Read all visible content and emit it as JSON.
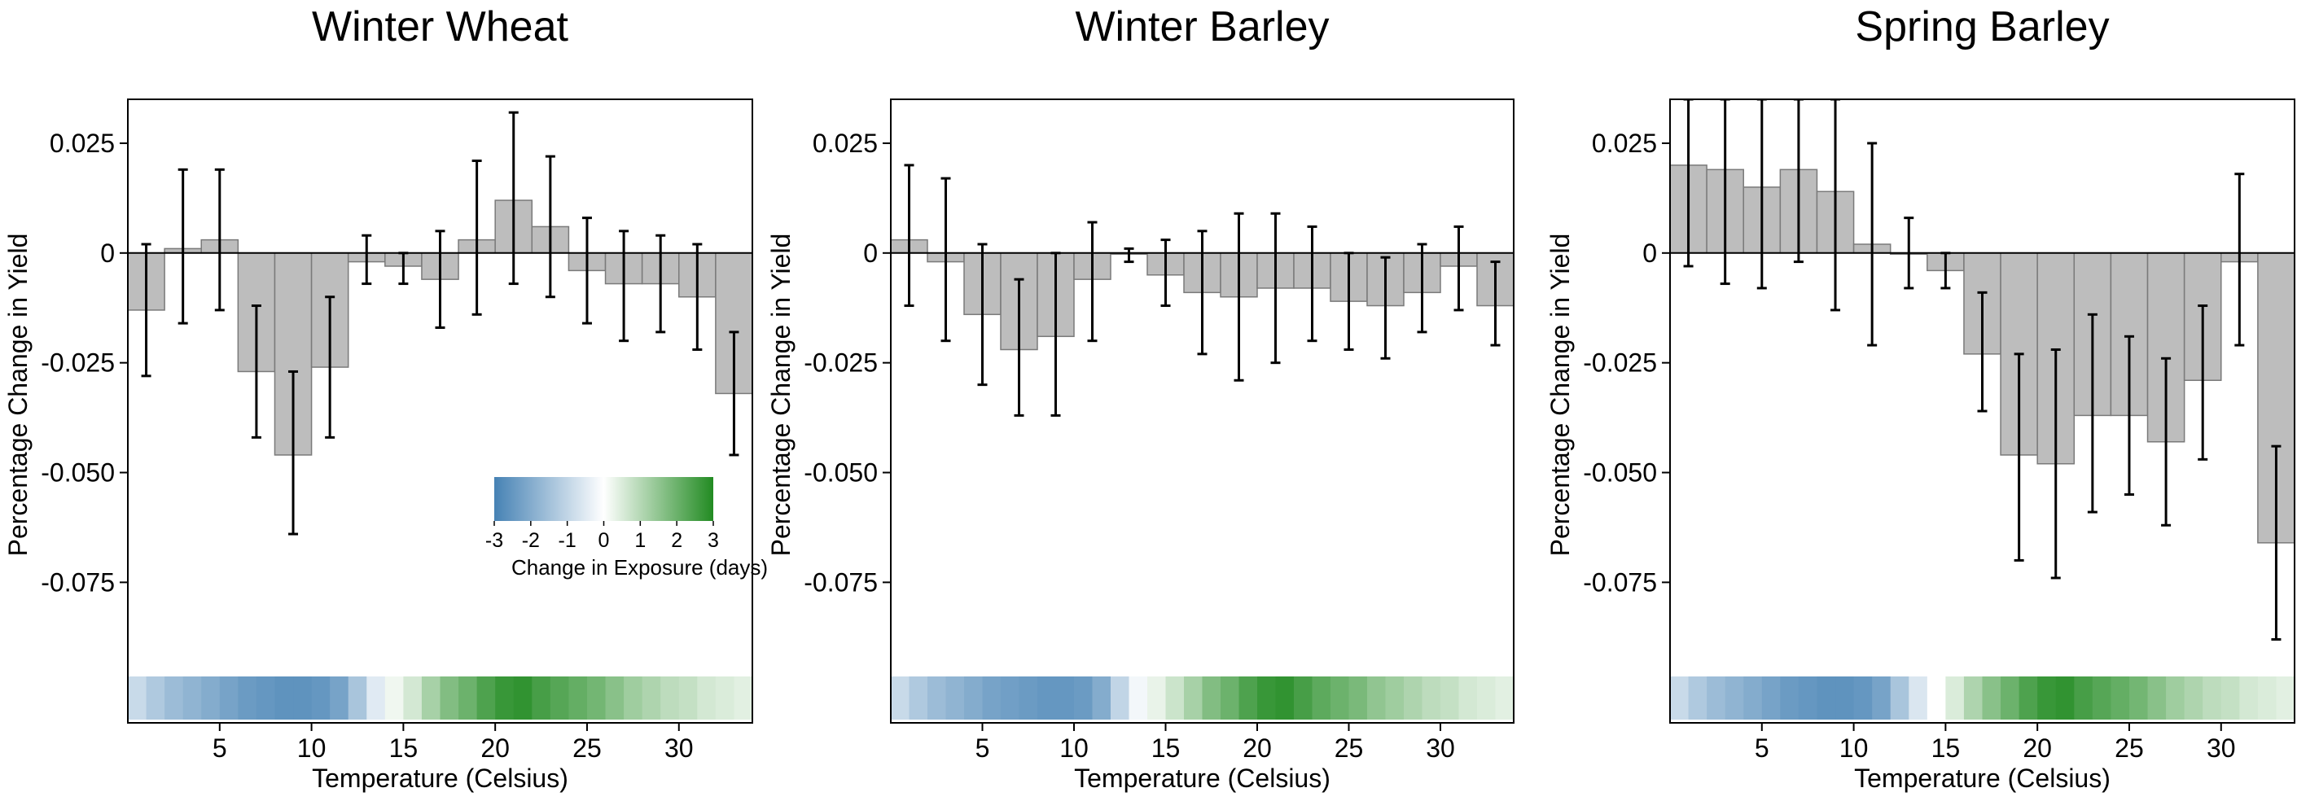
{
  "colors": {
    "bar_fill": "#bdbdbd",
    "bar_stroke": "#7a7a7a",
    "error_bar": "#000000",
    "cool": "#4682b4",
    "warm": "#228b22",
    "neutral": "#ffffff"
  },
  "legend": {
    "title": "Change in Exposure (days)",
    "min": -3,
    "max": 3,
    "ticks": [
      "-3",
      "-2",
      "-1",
      "0",
      "1",
      "2",
      "3"
    ],
    "placement": "inside panel 1, lower-middle"
  },
  "chart_data": [
    {
      "type": "bar",
      "title": "Winter Wheat",
      "xlabel": "Temperature (Celsius)",
      "ylabel": "Percentage Change in Yield",
      "xlim": [
        0,
        34
      ],
      "ylim": [
        -0.107,
        0.035
      ],
      "x_ticks": [
        5,
        10,
        15,
        20,
        25,
        30
      ],
      "x_tick_labels": [
        "5",
        "10",
        "15",
        "20",
        "25",
        "30"
      ],
      "y_ticks": [
        0.025,
        0,
        -0.025,
        -0.05,
        -0.075
      ],
      "y_tick_labels": [
        "0.025",
        "0",
        "-0.025",
        "-0.050",
        "-0.075"
      ],
      "bin_centers": [
        1,
        3,
        5,
        7,
        9,
        11,
        13,
        15,
        17,
        19,
        21,
        23,
        25,
        27,
        29,
        31,
        33
      ],
      "values": [
        -0.013,
        0.001,
        0.003,
        -0.027,
        -0.046,
        -0.026,
        -0.002,
        -0.003,
        -0.006,
        0.003,
        0.012,
        0.006,
        -0.004,
        -0.007,
        -0.007,
        -0.01,
        -0.032
      ],
      "error_low": [
        -0.028,
        -0.016,
        -0.013,
        -0.042,
        -0.064,
        -0.042,
        -0.007,
        -0.007,
        -0.017,
        -0.014,
        -0.007,
        -0.01,
        -0.016,
        -0.02,
        -0.018,
        -0.022,
        -0.046
      ],
      "error_high": [
        0.002,
        0.019,
        0.019,
        -0.012,
        -0.027,
        -0.01,
        0.004,
        0.0,
        0.005,
        0.021,
        0.032,
        0.022,
        0.008,
        0.005,
        0.004,
        0.002,
        -0.018
      ],
      "exposure_strip": {
        "temperatures": [
          0.5,
          1.5,
          2.5,
          3.5,
          4.5,
          5.5,
          6.5,
          7.5,
          8.5,
          9.5,
          10.5,
          11.5,
          12.5,
          13.5,
          14.5,
          15.5,
          16.5,
          17.5,
          18.5,
          19.5,
          20.5,
          21.5,
          22.5,
          23.5,
          24.5,
          25.5,
          26.5,
          27.5,
          28.5,
          29.5,
          30.5,
          31.5,
          32.5,
          33.5
        ],
        "values": [
          -0.9,
          -1.3,
          -1.6,
          -1.8,
          -2.0,
          -2.2,
          -2.4,
          -2.5,
          -2.6,
          -2.6,
          -2.5,
          -2.2,
          -1.4,
          -0.5,
          0.2,
          0.6,
          1.2,
          1.7,
          2.0,
          2.4,
          2.7,
          2.8,
          2.5,
          2.3,
          2.1,
          1.9,
          1.6,
          1.3,
          1.1,
          0.9,
          0.8,
          0.6,
          0.5,
          0.4
        ]
      }
    },
    {
      "type": "bar",
      "title": "Winter Barley",
      "xlabel": "Temperature (Celsius)",
      "ylabel": "Percentage Change in Yield",
      "xlim": [
        0,
        34
      ],
      "ylim": [
        -0.107,
        0.035
      ],
      "x_ticks": [
        5,
        10,
        15,
        20,
        25,
        30
      ],
      "x_tick_labels": [
        "5",
        "10",
        "15",
        "20",
        "25",
        "30"
      ],
      "y_ticks": [
        0.025,
        0,
        -0.025,
        -0.05,
        -0.075
      ],
      "y_tick_labels": [
        "0.025",
        "0",
        "-0.025",
        "-0.050",
        "-0.075"
      ],
      "bin_centers": [
        1,
        3,
        5,
        7,
        9,
        11,
        13,
        15,
        17,
        19,
        21,
        23,
        25,
        27,
        29,
        31,
        33
      ],
      "values": [
        0.003,
        -0.002,
        -0.014,
        -0.022,
        -0.019,
        -0.006,
        0.0,
        -0.005,
        -0.009,
        -0.01,
        -0.008,
        -0.008,
        -0.011,
        -0.012,
        -0.009,
        -0.003,
        -0.012
      ],
      "error_low": [
        -0.012,
        -0.02,
        -0.03,
        -0.037,
        -0.037,
        -0.02,
        -0.002,
        -0.012,
        -0.023,
        -0.029,
        -0.025,
        -0.02,
        -0.022,
        -0.024,
        -0.018,
        -0.013,
        -0.021
      ],
      "error_high": [
        0.02,
        0.017,
        0.002,
        -0.006,
        0.0,
        0.007,
        0.001,
        0.003,
        0.005,
        0.009,
        0.009,
        0.006,
        0.0,
        -0.001,
        0.002,
        0.006,
        -0.002
      ],
      "exposure_strip": {
        "temperatures": [
          0.5,
          1.5,
          2.5,
          3.5,
          4.5,
          5.5,
          6.5,
          7.5,
          8.5,
          9.5,
          10.5,
          11.5,
          12.5,
          13.5,
          14.5,
          15.5,
          16.5,
          17.5,
          18.5,
          19.5,
          20.5,
          21.5,
          22.5,
          23.5,
          24.5,
          25.5,
          26.5,
          27.5,
          28.5,
          29.5,
          30.5,
          31.5,
          32.5,
          33.5
        ],
        "values": [
          -0.9,
          -1.3,
          -1.6,
          -1.8,
          -2.0,
          -2.2,
          -2.3,
          -2.4,
          -2.5,
          -2.5,
          -2.4,
          -2.0,
          -1.0,
          -0.2,
          0.3,
          0.7,
          1.2,
          1.7,
          2.0,
          2.4,
          2.7,
          2.8,
          2.5,
          2.2,
          2.0,
          1.8,
          1.5,
          1.3,
          1.1,
          0.9,
          0.8,
          0.6,
          0.5,
          0.4
        ]
      }
    },
    {
      "type": "bar",
      "title": "Spring Barley",
      "xlabel": "Temperature (Celsius)",
      "ylabel": "Percentage Change in Yield",
      "xlim": [
        0,
        34
      ],
      "ylim": [
        -0.107,
        0.035
      ],
      "x_ticks": [
        5,
        10,
        15,
        20,
        25,
        30
      ],
      "x_tick_labels": [
        "5",
        "10",
        "15",
        "20",
        "25",
        "30"
      ],
      "y_ticks": [
        0.025,
        0,
        -0.025,
        -0.05,
        -0.075
      ],
      "y_tick_labels": [
        "0.025",
        "0",
        "-0.025",
        "-0.050",
        "-0.075"
      ],
      "bin_centers": [
        1,
        3,
        5,
        7,
        9,
        11,
        13,
        15,
        17,
        19,
        21,
        23,
        25,
        27,
        29,
        31,
        33
      ],
      "values": [
        0.02,
        0.019,
        0.015,
        0.019,
        0.014,
        0.002,
        0.0,
        -0.004,
        -0.023,
        -0.046,
        -0.048,
        -0.037,
        -0.037,
        -0.043,
        -0.029,
        -0.002,
        -0.066
      ],
      "error_low": [
        -0.003,
        -0.007,
        -0.008,
        -0.002,
        -0.013,
        -0.021,
        -0.008,
        -0.008,
        -0.036,
        -0.07,
        -0.074,
        -0.059,
        -0.055,
        -0.062,
        -0.047,
        -0.021,
        -0.088
      ],
      "error_high": [
        0.035,
        0.035,
        0.035,
        0.035,
        0.035,
        0.025,
        0.008,
        0.0,
        -0.009,
        -0.023,
        -0.022,
        -0.014,
        -0.019,
        -0.024,
        -0.012,
        0.018,
        -0.044
      ],
      "exposure_strip": {
        "temperatures": [
          0.5,
          1.5,
          2.5,
          3.5,
          4.5,
          5.5,
          6.5,
          7.5,
          8.5,
          9.5,
          10.5,
          11.5,
          12.5,
          13.5,
          14.5,
          15.5,
          16.5,
          17.5,
          18.5,
          19.5,
          20.5,
          21.5,
          22.5,
          23.5,
          24.5,
          25.5,
          26.5,
          27.5,
          28.5,
          29.5,
          30.5,
          31.5,
          32.5,
          33.5
        ],
        "values": [
          -0.9,
          -1.3,
          -1.6,
          -1.8,
          -2.0,
          -2.2,
          -2.4,
          -2.5,
          -2.6,
          -2.6,
          -2.5,
          -2.2,
          -1.4,
          -0.6,
          0.0,
          0.5,
          1.1,
          1.6,
          2.0,
          2.4,
          2.7,
          2.8,
          2.5,
          2.3,
          2.1,
          1.9,
          1.6,
          1.3,
          1.1,
          0.9,
          0.8,
          0.6,
          0.5,
          0.4
        ]
      }
    }
  ]
}
